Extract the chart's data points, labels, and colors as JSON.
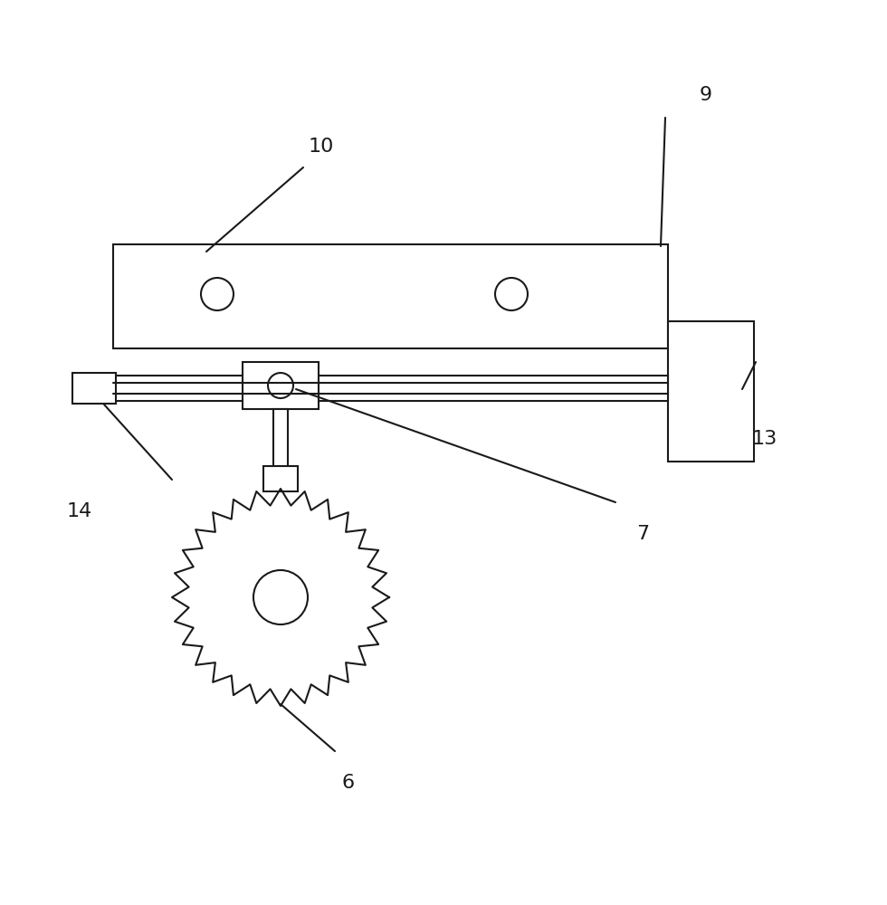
{
  "bg_color": "#ffffff",
  "line_color": "#1a1a1a",
  "lw": 1.5,
  "fig_w": 9.8,
  "fig_h": 10.0,
  "dpi": 100
}
